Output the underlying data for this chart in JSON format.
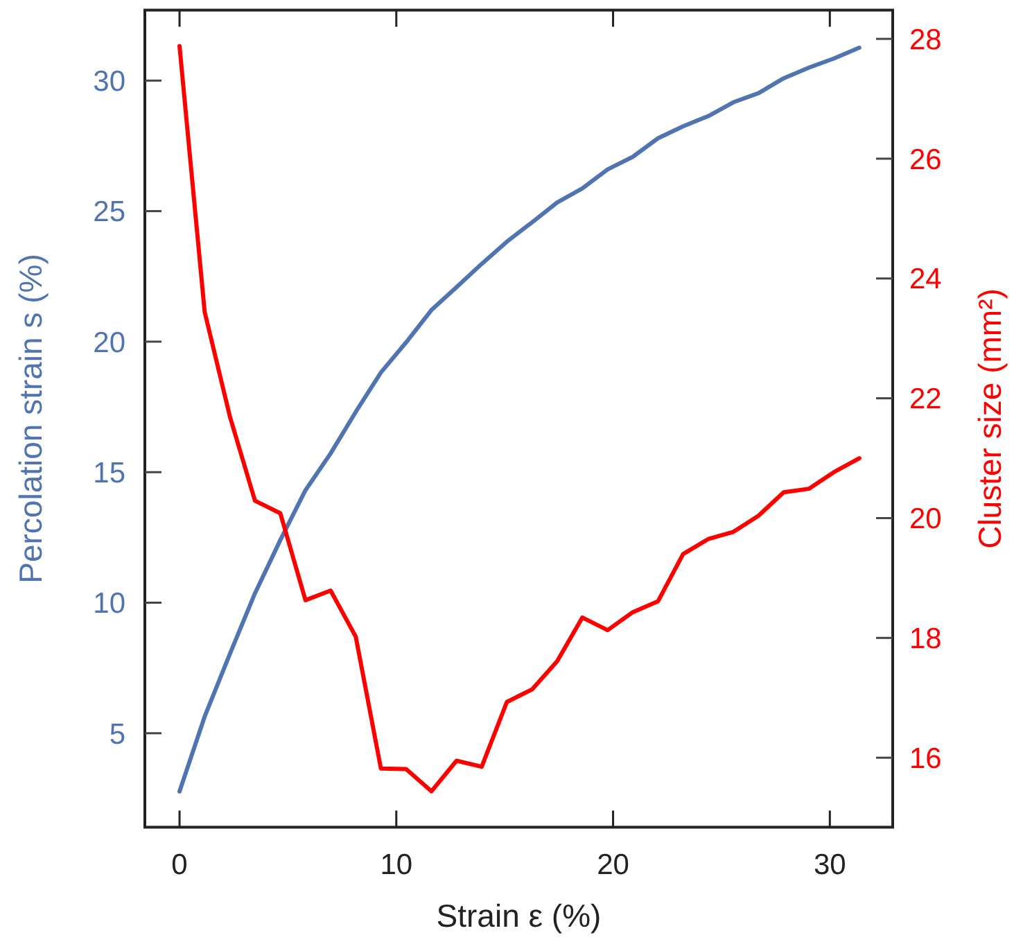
{
  "chart_data": {
    "type": "line",
    "xlabel": "Strain ε (%)",
    "ylabel": "Percolation strain s (%)",
    "y2label": "Cluster size (mm²)",
    "x": [
      0,
      1.16,
      2.32,
      3.48,
      4.65,
      5.81,
      6.97,
      8.13,
      9.29,
      10.45,
      11.62,
      12.78,
      13.94,
      15.1,
      16.26,
      17.42,
      18.58,
      19.75,
      20.91,
      22.07,
      23.23,
      24.39,
      25.55,
      26.71,
      27.87,
      29.04,
      30.2,
      31.36
    ],
    "xlim": [
      -1.6,
      32.9
    ],
    "xticks": [
      0,
      10,
      20,
      30
    ],
    "ylim": [
      1.4,
      32.7
    ],
    "yticks": [
      5,
      10,
      15,
      20,
      25,
      30
    ],
    "y2lim": [
      14.84,
      28.48
    ],
    "y2ticks": [
      16,
      18,
      20,
      22,
      24,
      26,
      28
    ],
    "series": [
      {
        "color": "#4f74b0",
        "values": [
          2.77,
          5.64,
          8.03,
          10.36,
          12.4,
          14.31,
          15.72,
          17.31,
          18.82,
          19.97,
          21.21,
          22.09,
          22.98,
          23.83,
          24.57,
          25.33,
          25.87,
          26.6,
          27.08,
          27.79,
          28.25,
          28.64,
          29.17,
          29.52,
          30.09,
          30.5,
          30.85,
          31.26
        ]
      },
      {
        "color": "#ff0000",
        "axis": "y2",
        "values": [
          27.88,
          23.44,
          21.7,
          20.29,
          20.08,
          18.63,
          18.79,
          18.02,
          15.82,
          15.81,
          15.44,
          15.95,
          15.85,
          16.93,
          17.14,
          17.61,
          18.34,
          18.13,
          18.43,
          18.61,
          19.4,
          19.65,
          19.77,
          20.04,
          20.43,
          20.49,
          20.77,
          21.0
        ]
      }
    ],
    "grid": false,
    "line_style": "solid",
    "marker": "none"
  }
}
